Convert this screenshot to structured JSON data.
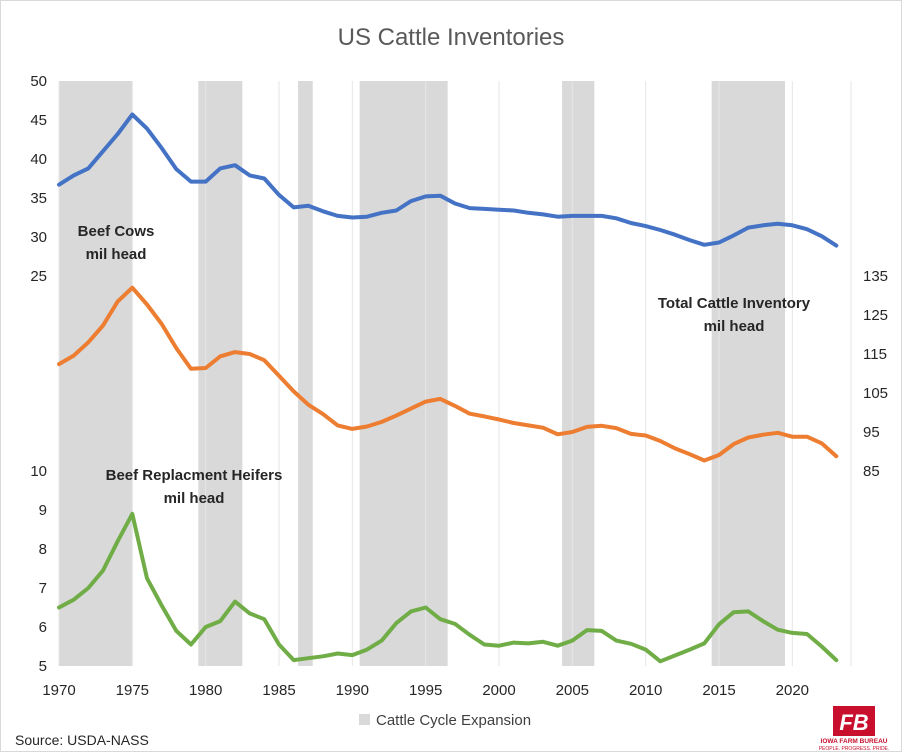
{
  "chart_data": {
    "type": "line",
    "title": "US Cattle Inventories",
    "source": "Source: USDA-NASS",
    "logo": {
      "text": "IOWA FARM BUREAU",
      "tagline": "PEOPLE. PROGRESS. PRIDE.",
      "color": "#c8102e"
    },
    "shading": {
      "label": "Cattle Cycle Expansion",
      "color": "#d9d9d9",
      "periods": [
        [
          1970,
          1975
        ],
        [
          1979.5,
          1982.5
        ],
        [
          1986.3,
          1987.3
        ],
        [
          1990.5,
          1996.5
        ],
        [
          2004.3,
          2006.5
        ],
        [
          2014.5,
          2019.5
        ]
      ]
    },
    "x": {
      "min": 1970,
      "max": 2024,
      "ticks": [
        1970,
        1975,
        1980,
        1985,
        1990,
        1995,
        2000,
        2005,
        2010,
        2015,
        2020
      ]
    },
    "panels": [
      {
        "key": "beef_cows",
        "label": [
          "Beef Cows",
          "mil head"
        ],
        "axis": "left",
        "ylim": [
          25,
          50
        ],
        "ticks": [
          25,
          30,
          35,
          40,
          45,
          50
        ]
      },
      {
        "key": "total_cattle",
        "label": [
          "Total Cattle Inventory",
          "mil head"
        ],
        "axis": "right",
        "ylim": [
          85,
          135
        ],
        "ticks": [
          85,
          95,
          105,
          115,
          125,
          135
        ]
      },
      {
        "key": "heifers",
        "label": [
          "Beef Replacment Heifers",
          "mil head"
        ],
        "axis": "left",
        "ylim": [
          5,
          10
        ],
        "ticks": [
          5,
          6,
          7,
          8,
          9,
          10
        ]
      }
    ],
    "series": [
      {
        "key": "beef_cows",
        "color": "#4472c4",
        "x": [
          1970,
          1971,
          1972,
          1973,
          1974,
          1975,
          1976,
          1977,
          1978,
          1979,
          1980,
          1981,
          1982,
          1983,
          1984,
          1985,
          1986,
          1987,
          1988,
          1989,
          1990,
          1991,
          1992,
          1993,
          1994,
          1995,
          1996,
          1997,
          1998,
          1999,
          2000,
          2001,
          2002,
          2003,
          2004,
          2005,
          2006,
          2007,
          2008,
          2009,
          2010,
          2011,
          2012,
          2013,
          2014,
          2015,
          2016,
          2017,
          2018,
          2019,
          2020,
          2021,
          2022,
          2023
        ],
        "values": [
          36.7,
          37.9,
          38.8,
          41.0,
          43.2,
          45.7,
          43.9,
          41.4,
          38.7,
          37.1,
          37.1,
          38.8,
          39.2,
          37.9,
          37.5,
          35.4,
          33.8,
          34.0,
          33.3,
          32.7,
          32.5,
          32.6,
          33.1,
          33.4,
          34.6,
          35.2,
          35.3,
          34.3,
          33.7,
          33.6,
          33.5,
          33.4,
          33.1,
          32.9,
          32.6,
          32.7,
          32.7,
          32.7,
          32.4,
          31.8,
          31.4,
          30.9,
          30.3,
          29.6,
          29.0,
          29.3,
          30.2,
          31.2,
          31.5,
          31.7,
          31.5,
          31.0,
          30.1,
          28.9
        ]
      },
      {
        "key": "total_cattle",
        "color": "#ed7d31",
        "x": [
          1970,
          1971,
          1972,
          1973,
          1974,
          1975,
          1976,
          1977,
          1978,
          1979,
          1980,
          1981,
          1982,
          1983,
          1984,
          1985,
          1986,
          1987,
          1988,
          1989,
          1990,
          1991,
          1992,
          1993,
          1994,
          1995,
          1996,
          1997,
          1998,
          1999,
          2000,
          2001,
          2002,
          2003,
          2004,
          2005,
          2006,
          2007,
          2008,
          2009,
          2010,
          2011,
          2012,
          2013,
          2014,
          2015,
          2016,
          2017,
          2018,
          2019,
          2020,
          2021,
          2022,
          2023
        ],
        "values": [
          112.4,
          114.6,
          118.0,
          122.3,
          128.5,
          132.0,
          127.7,
          122.7,
          116.5,
          111.2,
          111.4,
          114.4,
          115.5,
          115.0,
          113.4,
          109.4,
          105.4,
          102.0,
          99.6,
          96.7,
          95.8,
          96.4,
          97.6,
          99.2,
          101.0,
          102.8,
          103.5,
          101.7,
          99.7,
          99.0,
          98.2,
          97.3,
          96.7,
          96.1,
          94.4,
          95.0,
          96.3,
          96.6,
          96.0,
          94.5,
          94.1,
          92.7,
          90.8,
          89.3,
          87.7,
          89.1,
          91.9,
          93.6,
          94.3,
          94.8,
          93.8,
          93.8,
          92.1,
          88.8
        ]
      },
      {
        "key": "heifers",
        "color": "#70ad47",
        "x": [
          1970,
          1971,
          1972,
          1973,
          1974,
          1975,
          1976,
          1977,
          1978,
          1979,
          1980,
          1981,
          1982,
          1983,
          1984,
          1985,
          1986,
          1987,
          1988,
          1989,
          1990,
          1991,
          1992,
          1993,
          1994,
          1995,
          1996,
          1997,
          1998,
          1999,
          2000,
          2001,
          2002,
          2003,
          2004,
          2005,
          2006,
          2007,
          2008,
          2009,
          2010,
          2011,
          2012,
          2013,
          2014,
          2015,
          2016,
          2017,
          2018,
          2019,
          2020,
          2021,
          2022,
          2023
        ],
        "values": [
          6.5,
          6.7,
          7.0,
          7.45,
          8.2,
          8.9,
          7.25,
          6.55,
          5.9,
          5.55,
          6.0,
          6.15,
          6.65,
          6.35,
          6.2,
          5.55,
          5.15,
          5.2,
          5.25,
          5.32,
          5.28,
          5.42,
          5.65,
          6.1,
          6.4,
          6.5,
          6.2,
          6.08,
          5.8,
          5.55,
          5.52,
          5.6,
          5.58,
          5.62,
          5.52,
          5.65,
          5.92,
          5.9,
          5.65,
          5.57,
          5.42,
          5.12,
          5.27,
          5.42,
          5.58,
          6.07,
          6.38,
          6.4,
          6.15,
          5.93,
          5.85,
          5.82,
          5.5,
          5.15
        ]
      }
    ]
  }
}
